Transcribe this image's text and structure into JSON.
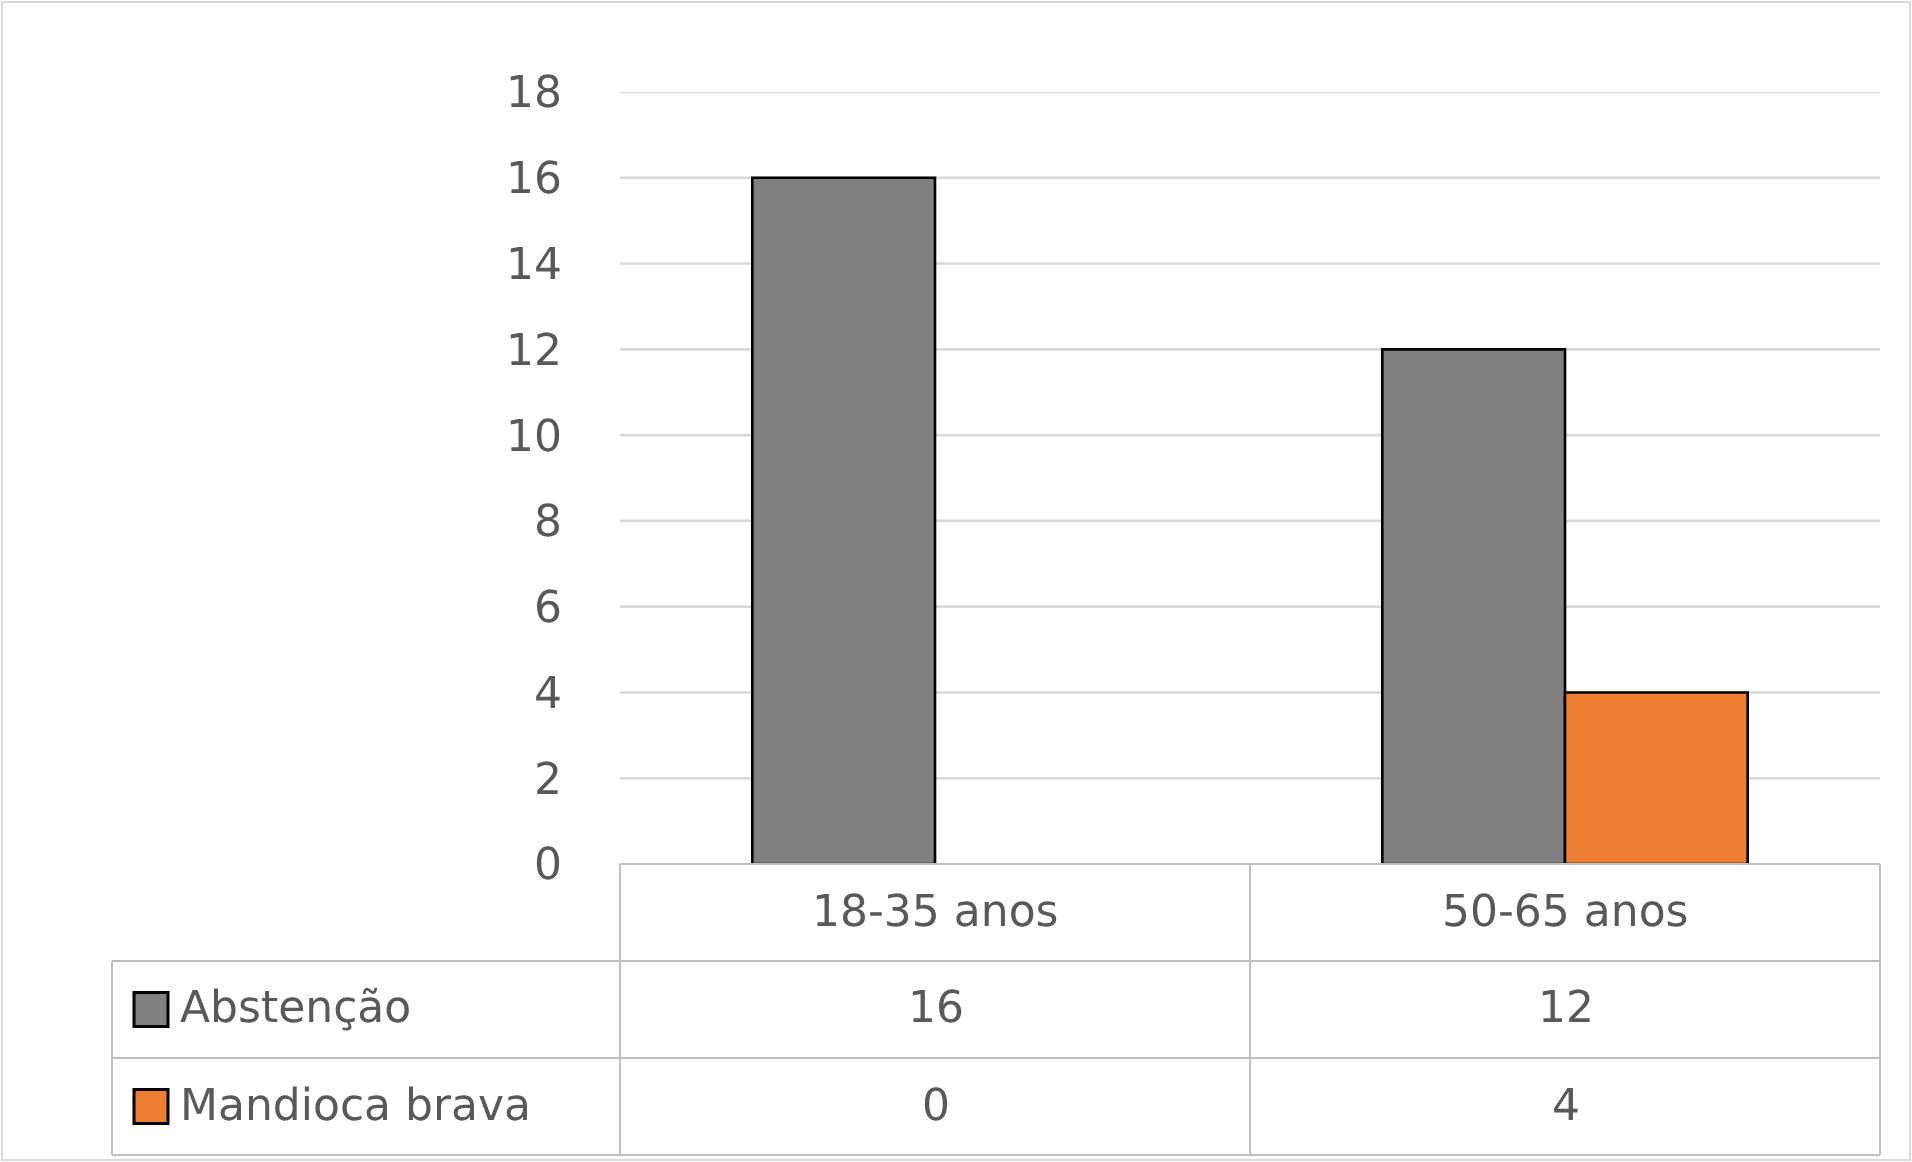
{
  "chart_data": {
    "type": "bar",
    "categories": [
      "18-35 anos",
      "50-65 anos"
    ],
    "series": [
      {
        "name": "Abstenção",
        "color": "#808080",
        "values": [
          16,
          12
        ]
      },
      {
        "name": "Mandioca brava",
        "color": "#ed7d31",
        "values": [
          0,
          4
        ]
      }
    ],
    "ylim": [
      0,
      18
    ],
    "yticks": [
      0,
      2,
      4,
      6,
      8,
      10,
      12,
      14,
      16,
      18
    ],
    "grid": "y",
    "data_labels": true,
    "legend": "bottom"
  }
}
